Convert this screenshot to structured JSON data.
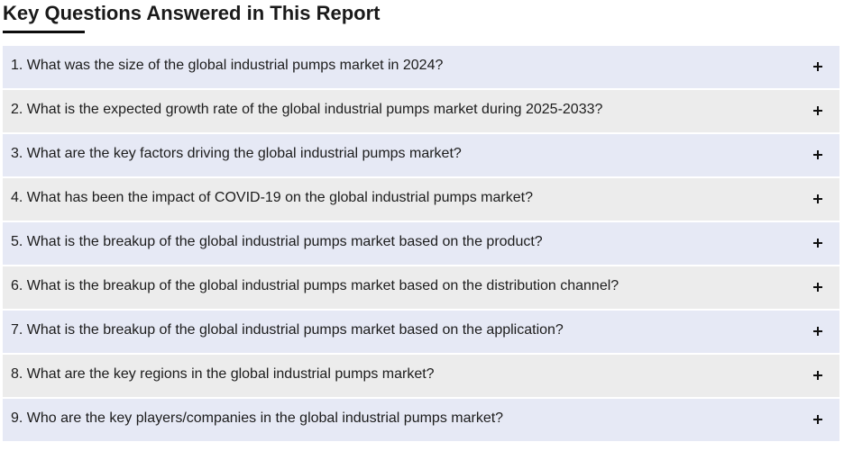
{
  "page": {
    "title": "Key Questions Answered in This Report"
  },
  "faq": {
    "toggle_icon": "plus-icon",
    "items": [
      {
        "question": "1. What was the size of the global industrial pumps market in 2024?"
      },
      {
        "question": "2. What is the expected growth rate of the global industrial pumps market during 2025-2033?"
      },
      {
        "question": "3. What are the key factors driving the global industrial pumps market?"
      },
      {
        "question": "4. What has been the impact of COVID-19 on the global industrial pumps market?"
      },
      {
        "question": "5. What is the breakup of the global industrial pumps market based on the product?"
      },
      {
        "question": "6. What is the breakup of the global industrial pumps market based on the distribution channel?"
      },
      {
        "question": "7. What is the breakup of the global industrial pumps market based on the application?"
      },
      {
        "question": "8. What are the key regions in the global industrial pumps market?"
      },
      {
        "question": "9. Who are the key players/companies in the global industrial pumps market?"
      }
    ]
  },
  "colors": {
    "row_odd": "#e6e9f5",
    "row_even": "#ececec",
    "text": "#1c1c1c"
  }
}
